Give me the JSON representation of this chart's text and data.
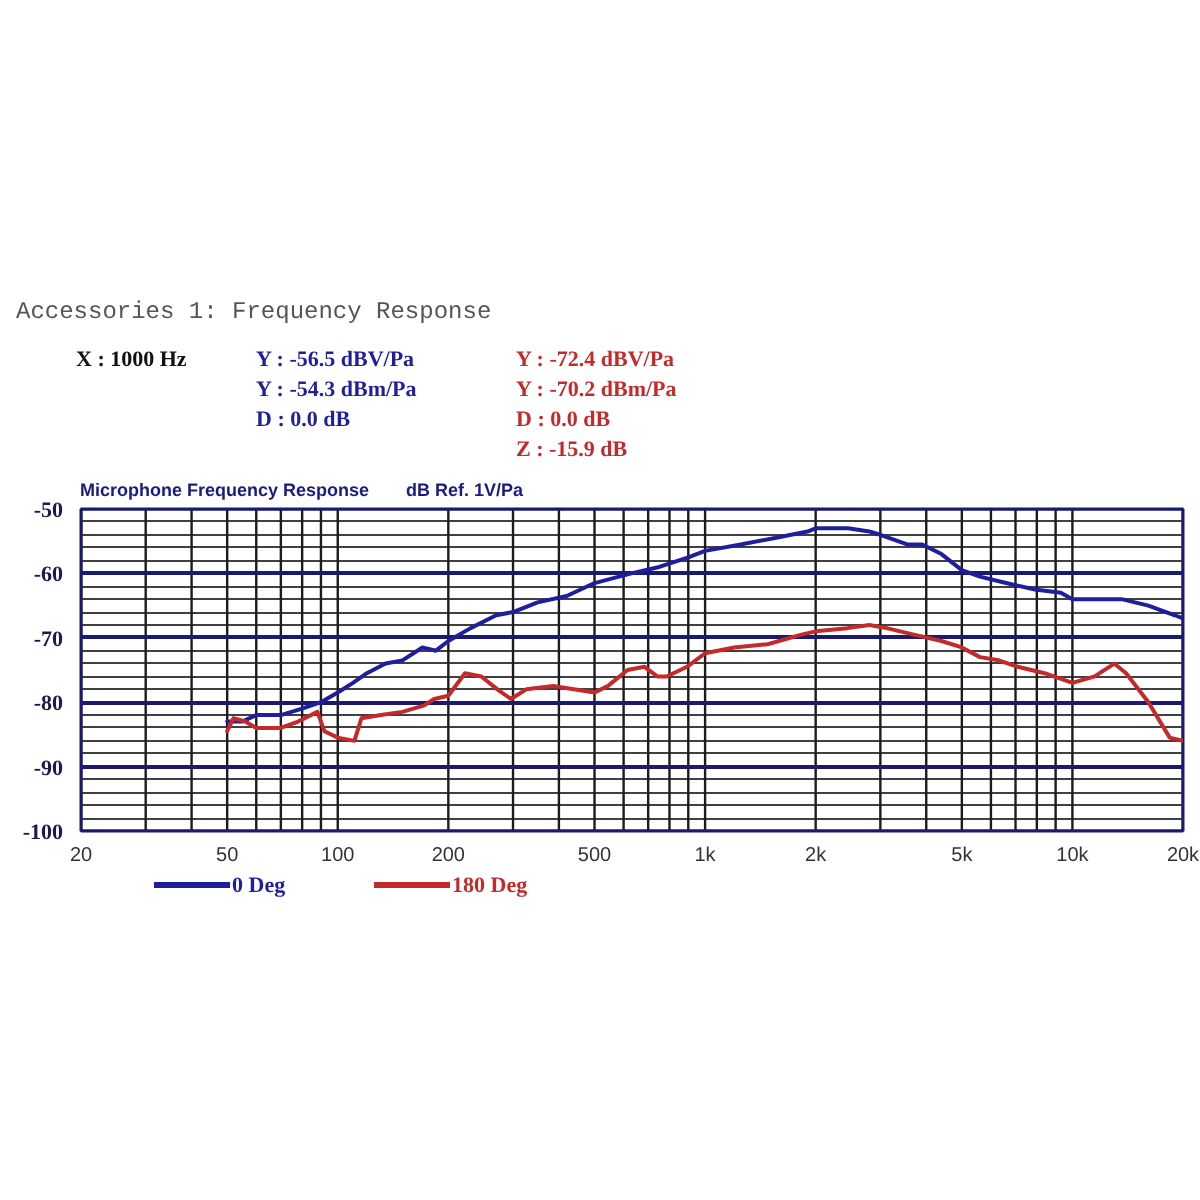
{
  "chart_data": {
    "type": "line",
    "title": "Accessories 1: Frequency Response",
    "subtitle": "Microphone Frequency Response",
    "ylabel": "dB Ref. 1V/Pa",
    "annotations": [
      "X : 1000 Hz",
      "Y : -56.5 dBV/Pa",
      "Y : -54.3 dBm/Pa",
      "D : 0.0 dB",
      "Y : -72.4 dBV/Pa",
      "Y : -70.2 dBm/Pa",
      "D : 0.0 dB",
      "Z : -15.9 dB"
    ],
    "log": "x",
    "xlim": [
      20,
      20000
    ],
    "ylim": [
      -100,
      -50
    ],
    "xticks": [
      20,
      {
        "value": 30,
        "label": null
      },
      {
        "value": 40,
        "label": null
      },
      50,
      {
        "value": 60,
        "label": null
      },
      {
        "value": 70,
        "label": null
      },
      {
        "value": 80,
        "label": null
      },
      {
        "value": 90,
        "label": null
      },
      100,
      200,
      {
        "value": 300,
        "label": null
      },
      {
        "value": 400,
        "label": null
      },
      500,
      {
        "value": 600,
        "label": null
      },
      {
        "value": 700,
        "label": null
      },
      {
        "value": 800,
        "label": null
      },
      {
        "value": 900,
        "label": null
      },
      {
        "value": 1000,
        "label": "1k"
      },
      {
        "value": 2000,
        "label": "2k"
      },
      {
        "value": 3000,
        "label": null
      },
      {
        "value": 4000,
        "label": null
      },
      {
        "value": 5000,
        "label": "5k"
      },
      {
        "value": 6000,
        "label": null
      },
      {
        "value": 7000,
        "label": null
      },
      {
        "value": 8000,
        "label": null
      },
      {
        "value": 9000,
        "label": null
      },
      {
        "value": 10000,
        "label": "10k"
      },
      {
        "value": 20000,
        "label": "20k"
      }
    ],
    "yticks": [
      -100,
      {
        "value": -98,
        "label": null
      },
      {
        "value": -96,
        "label": null
      },
      {
        "value": -94,
        "label": null
      },
      {
        "value": -92,
        "label": null
      },
      -90,
      {
        "value": -88,
        "label": null
      },
      {
        "value": -86,
        "label": null
      },
      {
        "value": -84,
        "label": null
      },
      {
        "value": -82,
        "label": null
      },
      -80,
      {
        "value": -78,
        "label": null
      },
      {
        "value": -76,
        "label": null
      },
      {
        "value": -74,
        "label": null
      },
      {
        "value": -72,
        "label": null
      },
      -70,
      {
        "value": -68,
        "label": null
      },
      {
        "value": -66,
        "label": null
      },
      {
        "value": -64,
        "label": null
      },
      {
        "value": -62,
        "label": null
      },
      -60,
      {
        "value": -58,
        "label": null
      },
      {
        "value": -56,
        "label": null
      },
      {
        "value": -54,
        "label": null
      },
      {
        "value": -52,
        "label": null
      },
      -50
    ],
    "grid": true,
    "legend": "bottom",
    "series": [
      {
        "name": "0 Deg",
        "color": "#1f1f9e",
        "x": [
          50,
          55,
          60,
          70,
          80,
          90,
          100,
          110,
          120,
          135,
          150,
          170,
          185,
          200,
          230,
          270,
          300,
          350,
          420,
          500,
          630,
          750,
          900,
          1000,
          1250,
          1550,
          1900,
          2000,
          2450,
          2800,
          3000,
          3550,
          3900,
          4400,
          5000,
          5600,
          6600,
          7900,
          9300,
          10000,
          11500,
          13600,
          16100,
          19000,
          20000
        ],
        "values": [
          -83,
          -83,
          -82,
          -82,
          -81,
          -80,
          -78.5,
          -77,
          -75.5,
          -74,
          -73.5,
          -71.5,
          -72,
          -70.5,
          -68.5,
          -66.5,
          -66,
          -64.5,
          -63.5,
          -61.5,
          -60,
          -59,
          -57.5,
          -56.5,
          -55.5,
          -54.5,
          -53.5,
          -53,
          -53,
          -53.5,
          -54,
          -55.5,
          -55.5,
          -57,
          -59.5,
          -60.5,
          -61.5,
          -62.5,
          -63,
          -64,
          -64,
          -64,
          -65,
          -66.5,
          -67
        ]
      },
      {
        "name": "180 Deg",
        "color": "#c42a2a",
        "x": [
          50,
          52,
          56,
          60,
          70,
          78,
          88,
          92,
          100,
          111,
          116,
          131,
          150,
          172,
          183,
          200,
          222,
          246,
          272,
          296,
          326,
          386,
          439,
          500,
          543,
          615,
          684,
          741,
          786,
          893,
          1000,
          1200,
          1480,
          1830,
          2000,
          2440,
          2800,
          3120,
          3700,
          4400,
          5000,
          5600,
          6300,
          7100,
          8400,
          10000,
          11500,
          13000,
          14000,
          16100,
          18400,
          20000
        ],
        "values": [
          -84.5,
          -82.5,
          -83,
          -84,
          -84,
          -83,
          -81.5,
          -84.5,
          -85.5,
          -86,
          -82.5,
          -82,
          -81.5,
          -80.5,
          -79.5,
          -79,
          -75.5,
          -76,
          -78,
          -79.5,
          -78,
          -77.5,
          -78,
          -78.5,
          -77.5,
          -75,
          -74.5,
          -76,
          -76,
          -74.5,
          -72.4,
          -71.5,
          -71,
          -69.5,
          -69,
          -68.5,
          -68,
          -68.5,
          -69.5,
          -70.5,
          -71.5,
          -73,
          -73.5,
          -74.5,
          -75.5,
          -77,
          -76,
          -74,
          -75.5,
          -80,
          -85.5,
          -86
        ]
      }
    ]
  }
}
